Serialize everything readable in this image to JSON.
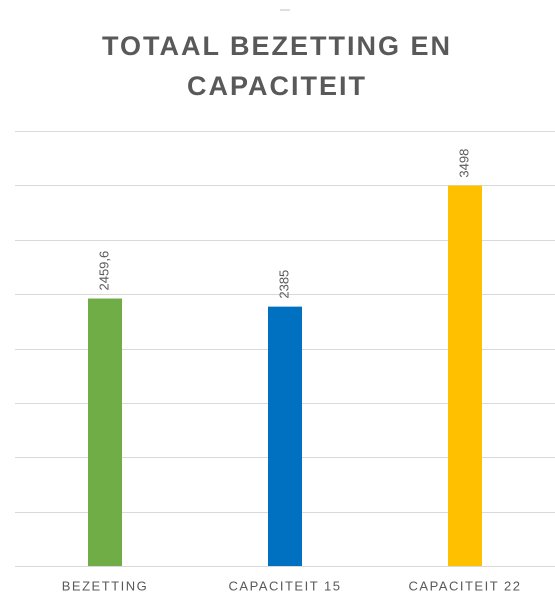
{
  "chart_data": {
    "type": "bar",
    "title": "TOTAAL BEZETTING EN CAPACITEIT",
    "categories": [
      "BEZETTING",
      "CAPACITEIT 15",
      "CAPACITEIT 22"
    ],
    "values": [
      2459.6,
      2385,
      3498
    ],
    "value_labels": [
      "2459,6",
      "2385",
      "3498"
    ],
    "colors": [
      "#70ad47",
      "#0070c0",
      "#ffc000"
    ],
    "ylim": [
      0,
      4000
    ],
    "yticks": [
      0,
      500,
      1000,
      1500,
      2000,
      2500,
      3000,
      3500,
      4000
    ],
    "grid": true
  }
}
